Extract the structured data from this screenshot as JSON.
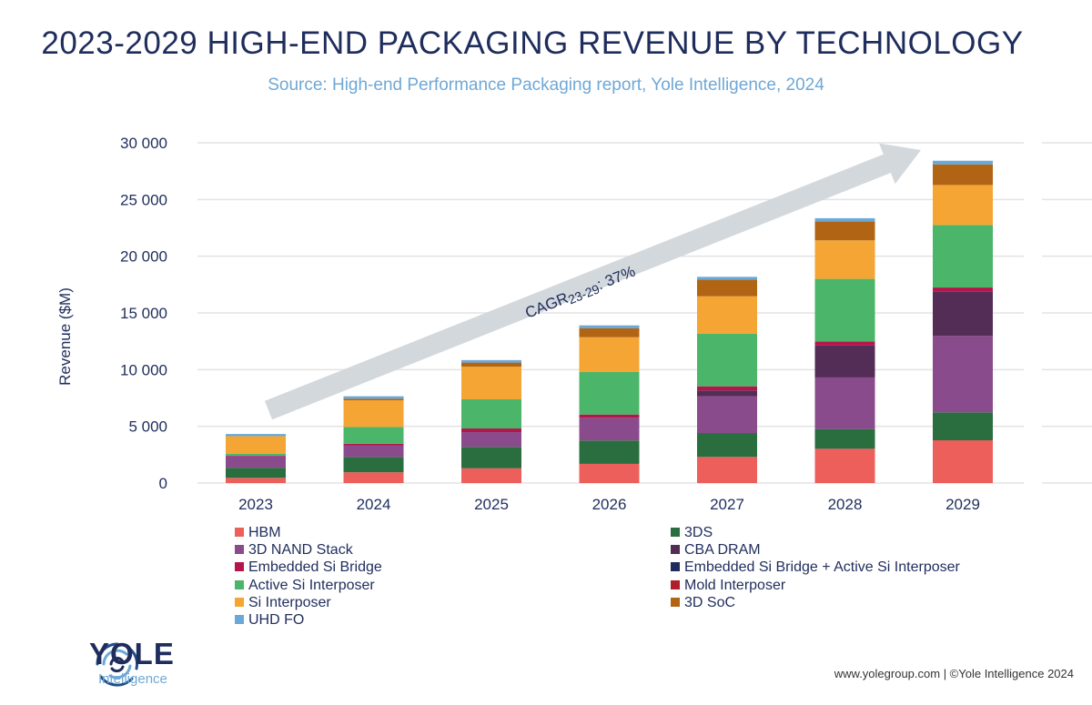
{
  "header": {
    "title": "2023-2029 HIGH-END PACKAGING REVENUE BY TECHNOLOGY",
    "subtitle": "Source: High-end Performance Packaging report, Yole Intelligence, 2024"
  },
  "annotation": {
    "cagr_prefix": "CAGR",
    "cagr_sub": "23-29",
    "cagr_value": ": 37%"
  },
  "chart_data": {
    "type": "bar",
    "stacked": true,
    "ylabel": "Revenue ($M)",
    "ylim": [
      0,
      30000
    ],
    "yticks": [
      "0",
      "5 000",
      "10 000",
      "15 000",
      "20 000",
      "25 000",
      "30 000"
    ],
    "ytick_values": [
      0,
      5000,
      10000,
      15000,
      20000,
      25000,
      30000
    ],
    "grid": true,
    "legend_position": "bottom",
    "categories": [
      "2023",
      "2024",
      "2025",
      "2026",
      "2027",
      "2028",
      "2029"
    ],
    "series": [
      {
        "name": "HBM",
        "color": "#ec5f5a",
        "values": [
          460,
          950,
          1300,
          1690,
          2300,
          3020,
          3770
        ]
      },
      {
        "name": "3DS",
        "color": "#2a6e3f",
        "values": [
          890,
          1350,
          1890,
          2060,
          2110,
          1740,
          2460
        ]
      },
      {
        "name": "3D NAND Stack",
        "color": "#8a4b8c",
        "values": [
          1030,
          1030,
          1300,
          2000,
          3240,
          4550,
          6740
        ]
      },
      {
        "name": "CBA DRAM",
        "color": "#532d55",
        "values": [
          0,
          0,
          0,
          0,
          510,
          2810,
          3900
        ]
      },
      {
        "name": "Embedded Si Bridge",
        "color": "#b5154d",
        "values": [
          30,
          130,
          320,
          290,
          370,
          350,
          370
        ]
      },
      {
        "name": "Embedded Si Bridge + Active Si Interposer",
        "color": "#1f2d5c",
        "values": [
          0,
          0,
          0,
          0,
          0,
          0,
          0
        ]
      },
      {
        "name": "Active Si Interposer",
        "color": "#4bb56a",
        "values": [
          160,
          1490,
          2570,
          3750,
          4650,
          5530,
          5510
        ]
      },
      {
        "name": "Mold Interposer",
        "color": "#b01e2a",
        "values": [
          0,
          0,
          0,
          0,
          0,
          0,
          0
        ]
      },
      {
        "name": "Si Interposer",
        "color": "#f5a533",
        "values": [
          1565,
          2350,
          2890,
          3070,
          3290,
          3400,
          3530
        ]
      },
      {
        "name": "3D SoC",
        "color": "#b06414",
        "values": [
          0,
          130,
          350,
          800,
          1470,
          1680,
          1820
        ]
      },
      {
        "name": "UHD FO",
        "color": "#6aa8d8",
        "values": [
          190,
          220,
          220,
          240,
          240,
          270,
          320
        ]
      }
    ]
  },
  "legend_layout": {
    "column_1": [
      "HBM",
      "3D NAND Stack",
      "Embedded Si Bridge",
      "Active Si Interposer",
      "Si Interposer",
      "UHD FO"
    ],
    "column_2": [
      "3DS",
      "CBA DRAM",
      "Embedded Si Bridge + Active Si Interposer",
      "Mold Interposer",
      "3D SoC"
    ]
  },
  "logo": {
    "word": "YOLE",
    "sub": "Intelligence"
  },
  "footer": {
    "text": "www.yolegroup.com | ©Yole Intelligence 2024"
  },
  "colors": {
    "title": "#1f2d5c",
    "subtitle": "#6fa8d6",
    "arrow": "#d3d8dc"
  }
}
